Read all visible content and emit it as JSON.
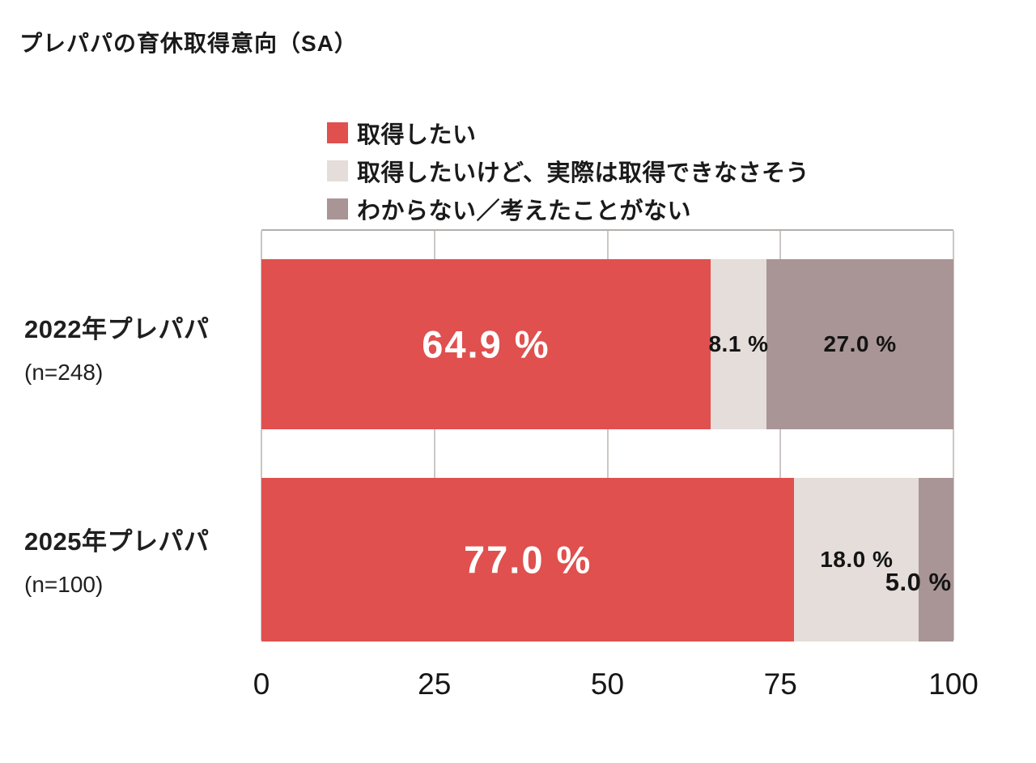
{
  "title": "プレパパの育休取得意向（SA）",
  "chart_data": {
    "type": "bar",
    "orientation": "horizontal",
    "stacked": true,
    "title": "プレパパの育休取得意向（SA）",
    "categories": [
      "2022年プレパパ",
      "2025年プレパパ"
    ],
    "category_sublabels": [
      "(n=248)",
      "(n=100)"
    ],
    "series": [
      {
        "name": "取得したい",
        "color": "#e0504e",
        "values": [
          64.9,
          77.0
        ],
        "labels": [
          "64.9 %",
          "77.0 %"
        ]
      },
      {
        "name": "取得したいけど、実際は取得できなさそう",
        "color": "#e4ddda",
        "values": [
          8.1,
          18.0
        ],
        "labels": [
          "8.1 %",
          "18.0 %"
        ]
      },
      {
        "name": "わからない／考えたことがない",
        "color": "#a99496",
        "values": [
          27.0,
          5.0
        ],
        "labels": [
          "27.0 %",
          "5.0 %"
        ]
      }
    ],
    "xticks": [
      0,
      25,
      50,
      75,
      100
    ],
    "xlim": [
      0,
      100
    ],
    "grid": true,
    "legend_position": "top"
  }
}
